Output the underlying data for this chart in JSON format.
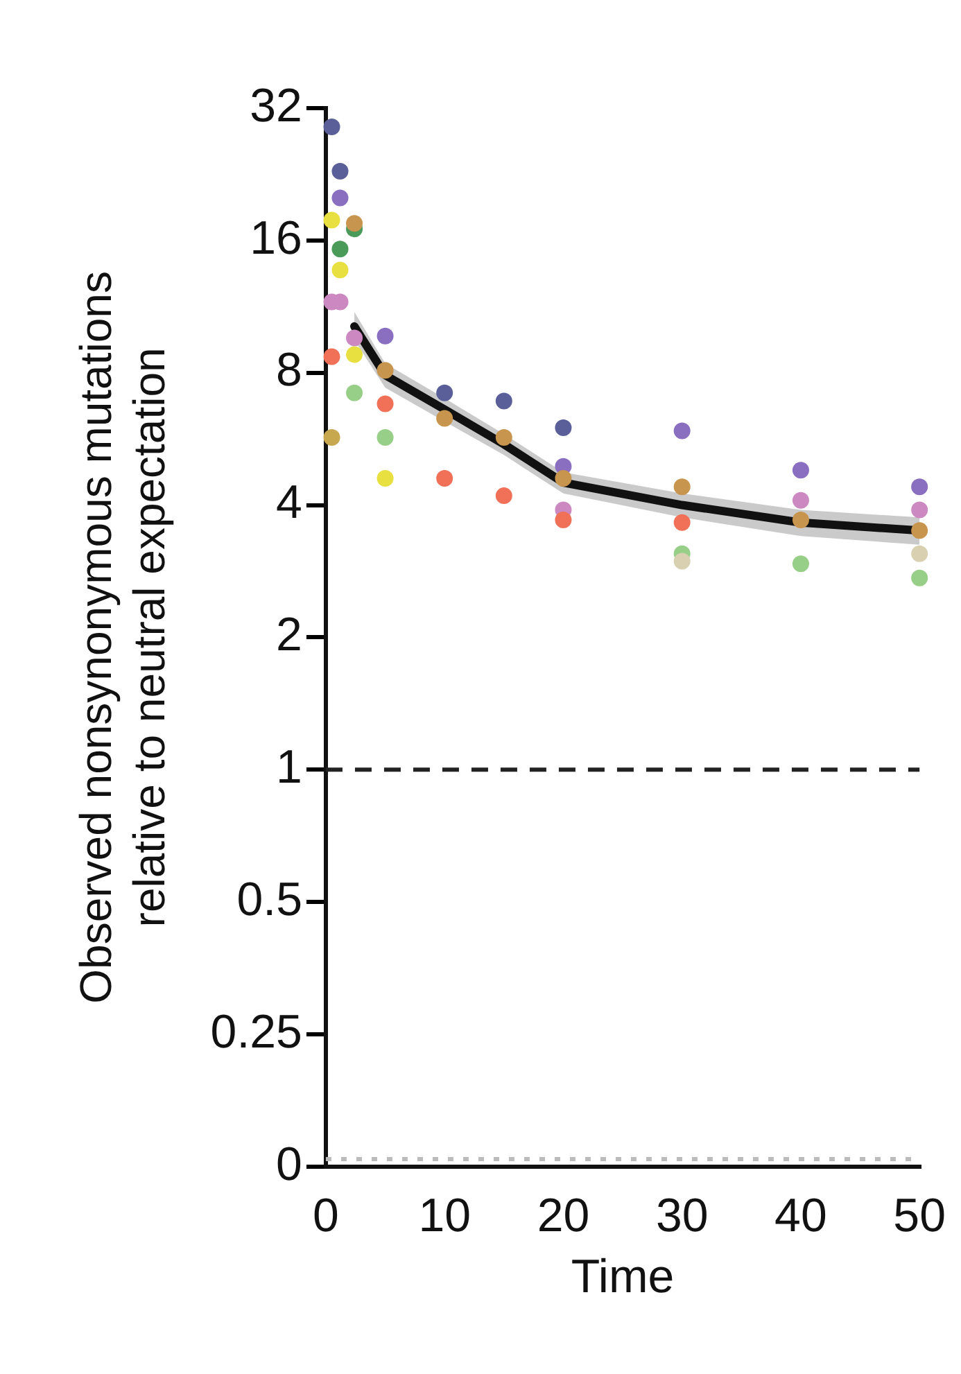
{
  "chart_data": {
    "type": "scatter",
    "xlabel": "Time",
    "ylabel": "Observed nonsynonymous mutations\nrelative to neutral expectation",
    "log": "y",
    "grid": false,
    "legend": false,
    "marker": "circle",
    "xlim": [
      0,
      50
    ],
    "xticks": [
      0,
      10,
      20,
      30,
      40,
      50
    ],
    "ylim": [
      0.125,
      32
    ],
    "yticks": [
      {
        "value": 0.125,
        "label": "0"
      },
      0.25,
      0.5,
      1,
      2,
      4,
      8,
      16,
      32
    ],
    "series": [
      {
        "color": "#5a5f9a",
        "x": [
          0.5,
          1.2,
          10,
          15,
          20
        ],
        "values": [
          29,
          23,
          7.2,
          6.9,
          6
        ]
      },
      {
        "color": "#8a6fc0",
        "x": [
          1.2,
          5,
          20,
          30,
          40,
          50
        ],
        "values": [
          20,
          9.7,
          4.9,
          5.9,
          4.8,
          4.4
        ]
      },
      {
        "color": "#cc88c0",
        "x": [
          0.5,
          1.2,
          2.4,
          20,
          40,
          50
        ],
        "values": [
          11.6,
          11.6,
          9.6,
          3.9,
          4.1,
          3.9
        ]
      },
      {
        "color": "#4a9a5a",
        "x": [
          1.2,
          2.4
        ],
        "values": [
          15.3,
          17
        ]
      },
      {
        "color": "#e8e040",
        "x": [
          0.5,
          1.2,
          2.4,
          5
        ],
        "values": [
          17.8,
          13.7,
          8.8,
          4.6
        ]
      },
      {
        "color": "#f07058",
        "x": [
          0.5,
          5,
          10,
          15,
          20,
          30
        ],
        "values": [
          8.7,
          6.8,
          4.6,
          4.2,
          3.7,
          3.65
        ]
      },
      {
        "color": "#98cf88",
        "x": [
          2.4,
          5,
          30,
          40,
          50
        ],
        "values": [
          7.2,
          5.7,
          3.1,
          2.94,
          2.73
        ]
      },
      {
        "color": "#d8d0b0",
        "x": [
          30,
          50
        ],
        "values": [
          2.98,
          3.1
        ]
      },
      {
        "color": "#c8a84f",
        "x": [
          0.5
        ],
        "values": [
          5.7
        ]
      },
      {
        "color": "#c8954f",
        "x": [
          2.4,
          5,
          10,
          15,
          20,
          30,
          40,
          50
        ],
        "values": [
          17.5,
          8.1,
          6.3,
          5.7,
          4.6,
          4.4,
          3.7,
          3.5
        ]
      },
      {
        "type": "line",
        "color": "#111111",
        "marker": "none",
        "line_style": "solid",
        "x": [
          2.4,
          5,
          10,
          15,
          20,
          30,
          40,
          50
        ],
        "values": [
          10.2,
          7.9,
          6.6,
          5.5,
          4.5,
          4,
          3.65,
          3.5
        ],
        "lower": [
          9.5,
          7.4,
          6.2,
          5.2,
          4.25,
          3.75,
          3.4,
          3.25
        ],
        "upper": [
          11,
          8.4,
          7,
          5.8,
          4.75,
          4.25,
          3.9,
          3.75
        ]
      }
    ],
    "ref_lines": [
      {
        "axis": "y",
        "value": 1,
        "color": "#222222",
        "line_style": "dashed"
      },
      {
        "axis": "y",
        "value": 0.13,
        "color": "#bbbbbb",
        "line_style": "dotted"
      }
    ]
  }
}
